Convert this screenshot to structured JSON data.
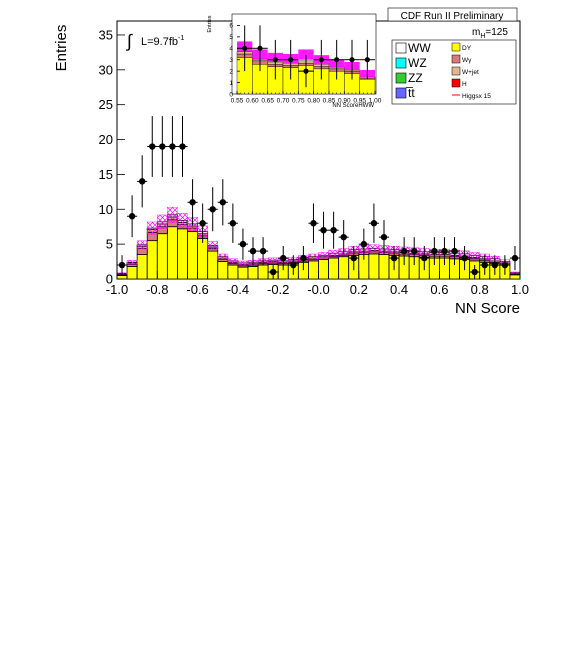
{
  "header": {
    "title": "CDF Run II Preliminary"
  },
  "chart_data": [
    {
      "type": "bar",
      "stacked": true,
      "xlabel": "NN Score",
      "ylabel": "Entries",
      "xlim": [
        -1.0,
        1.0
      ],
      "ylim": [
        0,
        37
      ],
      "xticks": [
        "-1.0",
        "-0.8",
        "-0.6",
        "-0.4",
        "-0.2",
        "-0.0",
        "0.2",
        "0.4",
        "0.6",
        "0.8",
        "1.0"
      ],
      "xtick_values": [
        -1.0,
        -0.8,
        -0.6,
        -0.4,
        -0.2,
        0.0,
        0.2,
        0.4,
        0.6,
        0.8,
        1.0
      ],
      "yticks": [
        "0",
        "5",
        "10",
        "15",
        "20",
        "25",
        "30",
        "35"
      ],
      "ytick_values": [
        0,
        5,
        10,
        15,
        20,
        25,
        30,
        35
      ],
      "lumi_label": "L=9.7fb",
      "lumi_exp": "-1",
      "mass_label": "m",
      "mass_sub": "H",
      "mass_value": "=125",
      "bin_edges": [
        -1.0,
        -0.95,
        -0.9,
        -0.85,
        -0.8,
        -0.75,
        -0.7,
        -0.65,
        -0.6,
        -0.55,
        -0.5,
        -0.45,
        -0.4,
        -0.35,
        -0.3,
        -0.25,
        -0.2,
        -0.15,
        -0.1,
        -0.05,
        0.0,
        0.05,
        0.1,
        0.15,
        0.2,
        0.25,
        0.3,
        0.35,
        0.4,
        0.45,
        0.5,
        0.55,
        0.6,
        0.65,
        0.7,
        0.75,
        0.8,
        0.85,
        0.9,
        0.95,
        1.0
      ],
      "series": [
        {
          "name": "DY",
          "color": "#ffff00",
          "values": [
            0.5,
            1.8,
            3.5,
            5.5,
            6.5,
            7.5,
            7.2,
            6.8,
            5.8,
            4.0,
            2.5,
            2.0,
            1.7,
            1.8,
            2.0,
            2.1,
            2.0,
            2.2,
            2.4,
            2.6,
            2.8,
            3.0,
            3.2,
            3.4,
            3.5,
            3.6,
            3.5,
            3.4,
            3.3,
            3.2,
            3.1,
            3.0,
            3.0,
            2.9,
            2.8,
            2.6,
            2.4,
            2.2,
            2.0,
            0.6
          ]
        },
        {
          "name": "Wγ",
          "color": "#d87a7a",
          "values": [
            0.1,
            0.3,
            0.9,
            1.2,
            1.0,
            1.0,
            0.6,
            0.5,
            0.4,
            0.4,
            0.3,
            0.2,
            0.2,
            0.2,
            0.2,
            0.2,
            0.2,
            0.2,
            0.2,
            0.2,
            0.2,
            0.2,
            0.2,
            0.3,
            0.3,
            0.3,
            0.3,
            0.3,
            0.3,
            0.3,
            0.3,
            0.3,
            0.3,
            0.3,
            0.3,
            0.3,
            0.3,
            0.2,
            0.2,
            0.1
          ]
        },
        {
          "name": "W+jet",
          "color": "#e0b890",
          "values": [
            0.1,
            0.2,
            0.3,
            0.4,
            0.4,
            0.4,
            0.3,
            0.3,
            0.3,
            0.2,
            0.2,
            0.2,
            0.2,
            0.2,
            0.2,
            0.2,
            0.2,
            0.2,
            0.2,
            0.2,
            0.2,
            0.2,
            0.2,
            0.2,
            0.2,
            0.2,
            0.2,
            0.2,
            0.2,
            0.2,
            0.2,
            0.2,
            0.2,
            0.2,
            0.2,
            0.2,
            0.2,
            0.2,
            0.1,
            0.1
          ]
        },
        {
          "name": "WW",
          "color": "#ffffff",
          "values": [
            0.1,
            0.1,
            0.2,
            0.2,
            0.3,
            0.3,
            0.3,
            0.3,
            0.3,
            0.2,
            0.2,
            0.2,
            0.2,
            0.2,
            0.2,
            0.2,
            0.2,
            0.2,
            0.2,
            0.2,
            0.2,
            0.3,
            0.3,
            0.3,
            0.3,
            0.3,
            0.3,
            0.3,
            0.3,
            0.3,
            0.3,
            0.3,
            0.3,
            0.3,
            0.3,
            0.3,
            0.3,
            0.3,
            0.2,
            0.1
          ]
        },
        {
          "name": "H",
          "color": "#ff0000",
          "values": [
            0.0,
            0.0,
            0.0,
            0.0,
            0.0,
            0.0,
            0.0,
            0.0,
            0.0,
            0.0,
            0.0,
            0.0,
            0.0,
            0.0,
            0.0,
            0.0,
            0.0,
            0.0,
            0.0,
            0.0,
            0.0,
            0.0,
            0.0,
            0.0,
            0.0,
            0.0,
            0.0,
            0.0,
            0.0,
            0.0,
            0.0,
            0.0,
            0.0,
            0.0,
            0.0,
            0.0,
            0.0,
            0.0,
            0.0,
            0.0
          ]
        }
      ],
      "uncertainty_band": {
        "color": "#ff00ff",
        "relative": 0.12
      },
      "data_points": {
        "x": [
          -0.975,
          -0.925,
          -0.875,
          -0.825,
          -0.775,
          -0.725,
          -0.675,
          -0.625,
          -0.575,
          -0.525,
          -0.475,
          -0.425,
          -0.375,
          -0.325,
          -0.275,
          -0.225,
          -0.175,
          -0.125,
          -0.075,
          -0.025,
          0.025,
          0.075,
          0.125,
          0.175,
          0.225,
          0.275,
          0.325,
          0.375,
          0.425,
          0.475,
          0.525,
          0.575,
          0.625,
          0.675,
          0.725,
          0.775,
          0.825,
          0.875,
          0.925,
          0.975
        ],
        "y": [
          2,
          9,
          14,
          19,
          19,
          19,
          19,
          11,
          8,
          10,
          11,
          8,
          5,
          4,
          4,
          1,
          3,
          2,
          3,
          8,
          7,
          7,
          6,
          3,
          5,
          8,
          6,
          3,
          4,
          4,
          3,
          4,
          4,
          4,
          3,
          1,
          2,
          2,
          2,
          3
        ]
      },
      "legend": {
        "left": [
          {
            "label": "WW",
            "color": "#ffffff"
          },
          {
            "label": "WZ",
            "color": "#00ffff"
          },
          {
            "label": "ZZ",
            "color": "#33cc33"
          },
          {
            "label": "t̅t",
            "color": "#6666ff"
          }
        ],
        "right": [
          {
            "label": "DY",
            "color": "#ffff00"
          },
          {
            "label": "Wγ",
            "color": "#d87a7a"
          },
          {
            "label": "W+jet",
            "color": "#e0b890"
          },
          {
            "label": "H",
            "color": "#ff0000"
          },
          {
            "label": "Higgsx 15",
            "color": "#ff0000",
            "line": true
          }
        ]
      }
    },
    {
      "type": "bar",
      "stacked": true,
      "role": "inset",
      "xlabel": "NN ScoreHWW",
      "ylabel": "Entries",
      "xlim": [
        0.55,
        1.0
      ],
      "ylim": [
        0,
        7
      ],
      "xticks": [
        "0.55",
        "0.60",
        "0.65",
        "0.70",
        "0.75",
        "0.80",
        "0.85",
        "0.90",
        "0.95",
        "1.00"
      ],
      "xtick_values": [
        0.55,
        0.6,
        0.65,
        0.7,
        0.75,
        0.8,
        0.85,
        0.9,
        0.95,
        1.0
      ],
      "yticks": [
        "0",
        "1",
        "2",
        "3",
        "4",
        "5",
        "6"
      ],
      "ytick_values": [
        0,
        1,
        2,
        3,
        4,
        5,
        6
      ],
      "bin_edges": [
        0.55,
        0.6,
        0.65,
        0.7,
        0.75,
        0.8,
        0.85,
        0.9,
        0.95,
        1.0
      ],
      "series": [
        {
          "name": "DY",
          "color": "#ffff00",
          "values": [
            3.2,
            2.6,
            2.4,
            2.3,
            2.5,
            2.2,
            2.0,
            1.8,
            1.3
          ]
        },
        {
          "name": "Wγ",
          "color": "#d87a7a",
          "values": [
            0.3,
            0.3,
            0.2,
            0.2,
            0.2,
            0.2,
            0.2,
            0.2,
            0.1
          ]
        },
        {
          "name": "W+jet",
          "color": "#e0b890",
          "values": [
            0.2,
            0.2,
            0.2,
            0.2,
            0.2,
            0.2,
            0.2,
            0.1,
            0.1
          ]
        }
      ],
      "band": {
        "color": "#ff00ff",
        "lower": [
          3.7,
          3.0,
          2.8,
          2.7,
          3.0,
          2.6,
          2.3,
          2.1,
          1.5
        ],
        "upper": [
          4.6,
          3.9,
          3.6,
          3.5,
          3.9,
          3.4,
          3.0,
          2.8,
          2.1
        ]
      },
      "data_points": {
        "x": [
          0.575,
          0.625,
          0.675,
          0.725,
          0.775,
          0.825,
          0.875,
          0.925,
          0.975
        ],
        "y": [
          4,
          4,
          3,
          3,
          2,
          3,
          3,
          3,
          3
        ]
      }
    }
  ]
}
